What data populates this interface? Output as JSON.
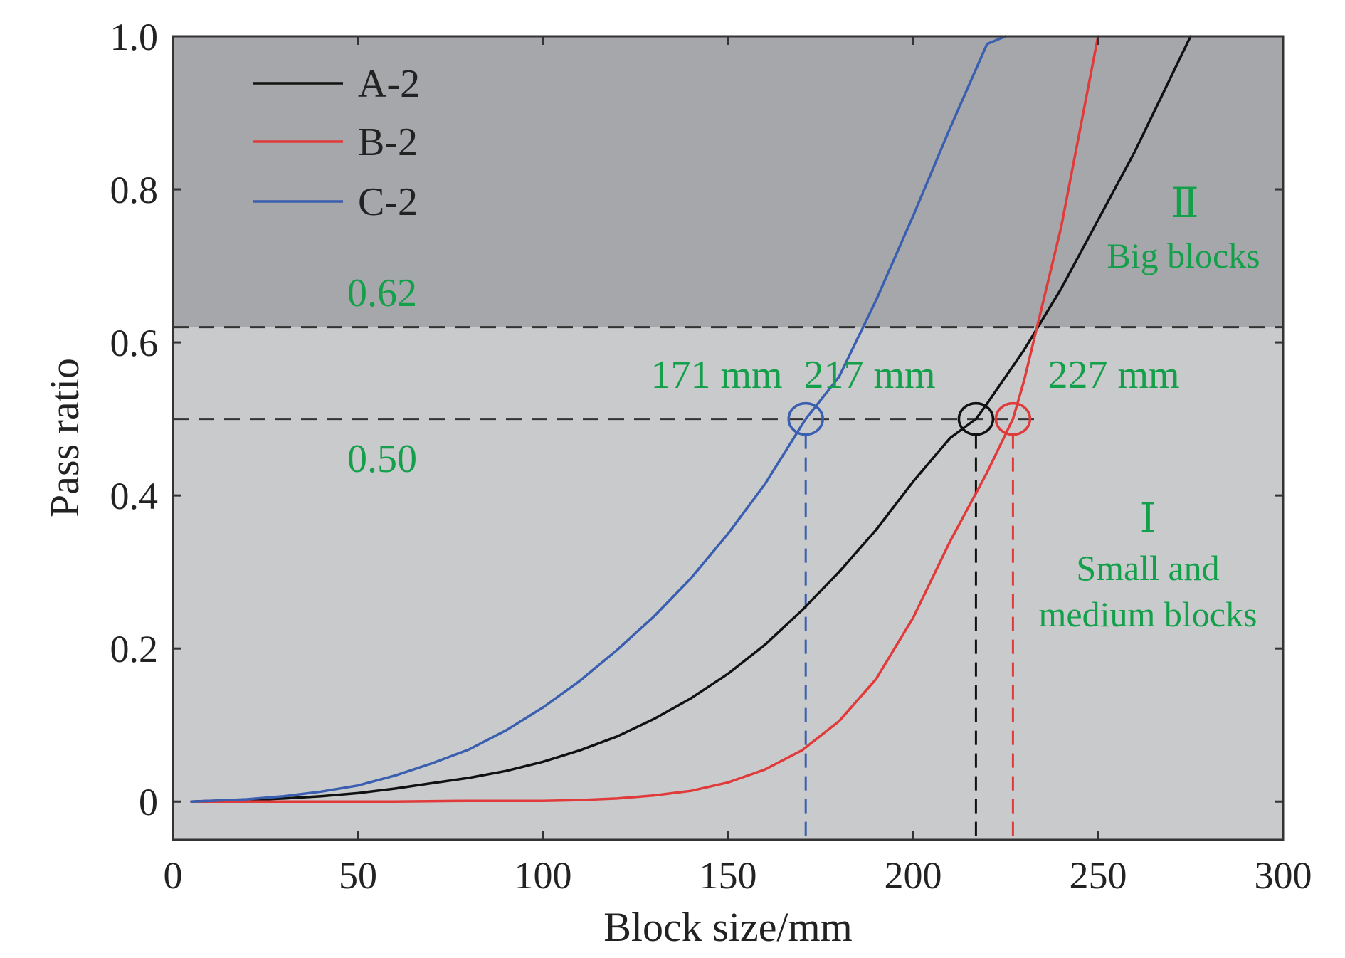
{
  "chart_data": {
    "type": "line",
    "xlabel": "Block size/mm",
    "ylabel": "Pass ratio",
    "xlim": [
      0,
      300
    ],
    "ylim": [
      -0.05,
      1.0
    ],
    "x_ticks": [
      0,
      50,
      100,
      150,
      200,
      250,
      300
    ],
    "x_tick_labels": [
      "0",
      "50",
      "100",
      "150",
      "200",
      "250",
      "300"
    ],
    "y_ticks": [
      0,
      0.2,
      0.4,
      0.6,
      0.8,
      1.0
    ],
    "y_tick_labels": [
      "0",
      "0.2",
      "0.4",
      "0.6",
      "0.8",
      "1.0"
    ],
    "grid": false,
    "legend_position": "top-left",
    "background_regions": [
      {
        "y_from": -0.05,
        "y_to": 0.62,
        "color": "#c9cacc"
      },
      {
        "y_from": 0.62,
        "y_to": 1.0,
        "color": "#a6a7aa"
      }
    ],
    "series": [
      {
        "name": "A-2",
        "color": "#111111",
        "x": [
          5,
          10,
          20,
          30,
          40,
          50,
          60,
          70,
          80,
          90,
          100,
          110,
          120,
          130,
          140,
          150,
          160,
          170,
          180,
          190,
          200,
          210,
          217,
          220,
          230,
          240,
          250,
          260,
          270,
          275
        ],
        "y": [
          0.0,
          0.001,
          0.002,
          0.004,
          0.007,
          0.011,
          0.017,
          0.024,
          0.031,
          0.04,
          0.052,
          0.067,
          0.085,
          0.108,
          0.135,
          0.167,
          0.205,
          0.25,
          0.3,
          0.355,
          0.418,
          0.475,
          0.5,
          0.52,
          0.59,
          0.67,
          0.76,
          0.85,
          0.95,
          1.0
        ]
      },
      {
        "name": "B-2",
        "color": "#e03a3a",
        "x": [
          5,
          20,
          40,
          60,
          80,
          100,
          110,
          120,
          130,
          140,
          150,
          160,
          170,
          180,
          190,
          200,
          210,
          220,
          227,
          230,
          240,
          250
        ],
        "y": [
          0.0,
          0.0,
          0.0,
          0.0,
          0.001,
          0.001,
          0.002,
          0.004,
          0.008,
          0.014,
          0.025,
          0.042,
          0.067,
          0.105,
          0.16,
          0.24,
          0.34,
          0.43,
          0.5,
          0.55,
          0.75,
          1.0
        ]
      },
      {
        "name": "C-2",
        "color": "#3a5fb0",
        "x": [
          5,
          10,
          20,
          30,
          40,
          50,
          60,
          70,
          80,
          90,
          100,
          110,
          120,
          130,
          140,
          150,
          160,
          171,
          180,
          190,
          200,
          210,
          220,
          225
        ],
        "y": [
          0.0,
          0.001,
          0.003,
          0.007,
          0.013,
          0.021,
          0.034,
          0.05,
          0.068,
          0.093,
          0.123,
          0.158,
          0.198,
          0.242,
          0.292,
          0.35,
          0.415,
          0.5,
          0.555,
          0.655,
          0.765,
          0.88,
          0.99,
          1.0
        ]
      }
    ],
    "reference_lines": [
      {
        "type": "horizontal",
        "y": 0.62,
        "label": "0.62",
        "color": "#333333"
      },
      {
        "type": "horizontal",
        "y": 0.5,
        "label": "0.50",
        "color": "#333333"
      }
    ],
    "markers": [
      {
        "series": "C-2",
        "x": 171,
        "y": 0.5,
        "label": "171 mm",
        "color": "#3a5fb0"
      },
      {
        "series": "A-2",
        "x": 217,
        "y": 0.5,
        "label": "217 mm",
        "color": "#111111"
      },
      {
        "series": "B-2",
        "x": 227,
        "y": 0.5,
        "label": "227 mm",
        "color": "#e03a3a"
      }
    ],
    "annotations": [
      {
        "text": "Ⅱ",
        "color": "#14a04a"
      },
      {
        "text": "Big blocks",
        "color": "#14a04a"
      },
      {
        "text": "Ⅰ",
        "color": "#14a04a"
      },
      {
        "text": "Small and",
        "color": "#14a04a"
      },
      {
        "text": "medium blocks",
        "color": "#14a04a"
      }
    ]
  }
}
